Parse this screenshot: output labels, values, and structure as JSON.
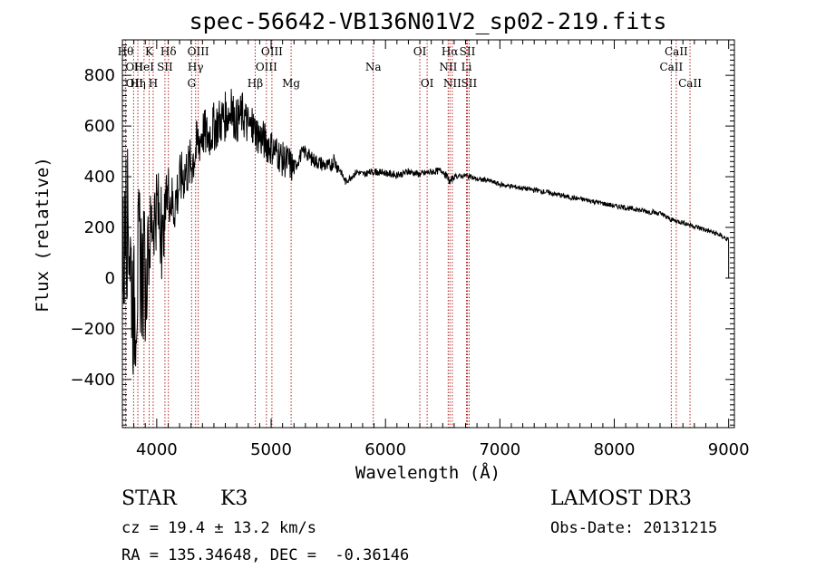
{
  "chart_data": {
    "type": "line",
    "title": "spec-56642-VB136N01V2_sp02-219.fits",
    "xlabel": "Wavelength (Å)",
    "ylabel": "Flux (relative)",
    "xlim": [
      3700,
      9050
    ],
    "ylim": [
      -590,
      940
    ],
    "xticks": [
      4000,
      5000,
      6000,
      7000,
      8000,
      9000
    ],
    "yticks": [
      -400,
      -200,
      0,
      200,
      400,
      600,
      800
    ],
    "tick_labels": {
      "x": [
        "4000",
        "5000",
        "6000",
        "7000",
        "8000",
        "9000"
      ],
      "y": [
        "−400",
        "−200",
        "0",
        "200",
        "400",
        "600",
        "800"
      ]
    },
    "spectrum": {
      "name": "flux",
      "x": [
        3700,
        3750,
        3800,
        3850,
        3900,
        3950,
        4000,
        4050,
        4100,
        4150,
        4200,
        4250,
        4300,
        4350,
        4400,
        4450,
        4500,
        4550,
        4600,
        4650,
        4700,
        4750,
        4800,
        4850,
        4900,
        4950,
        5000,
        5050,
        5100,
        5150,
        5200,
        5250,
        5300,
        5350,
        5400,
        5450,
        5500,
        5550,
        5600,
        5650,
        5700,
        5750,
        5800,
        5900,
        6000,
        6100,
        6200,
        6300,
        6400,
        6500,
        6563,
        6600,
        6700,
        6800,
        6900,
        7000,
        7200,
        7400,
        7600,
        7800,
        8000,
        8200,
        8400,
        8500,
        8600,
        8700,
        8800,
        8900,
        9000
      ],
      "y": [
        50,
        250,
        -150,
        100,
        -50,
        200,
        300,
        150,
        350,
        280,
        380,
        420,
        450,
        520,
        580,
        560,
        600,
        620,
        640,
        660,
        620,
        650,
        600,
        590,
        560,
        540,
        520,
        500,
        470,
        460,
        430,
        480,
        500,
        470,
        460,
        450,
        440,
        460,
        430,
        380,
        400,
        420,
        410,
        420,
        415,
        405,
        420,
        410,
        420,
        425,
        380,
        400,
        405,
        390,
        385,
        370,
        355,
        340,
        320,
        305,
        285,
        270,
        255,
        230,
        220,
        205,
        190,
        175,
        150
      ]
    },
    "noise": [
      300,
      180,
      120,
      110,
      100,
      90,
      80,
      70,
      30,
      14,
      10
    ],
    "noise_breaks": [
      3900,
      4050,
      4200,
      4400,
      4600,
      4800,
      5000,
      5200,
      5600,
      6600,
      9000
    ],
    "lines": [
      {
        "label": "Hθ",
        "wl": 3798,
        "row": 0,
        "anchor": "end"
      },
      {
        "label": "OII",
        "wl": 3727,
        "row": 1,
        "anchor": "start"
      },
      {
        "label": "OII",
        "wl": 3729,
        "row": 2,
        "anchor": "start"
      },
      {
        "label": "Hη",
        "wl": 3835,
        "row": 2,
        "anchor": "middle"
      },
      {
        "label": "K",
        "wl": 3934,
        "row": 0,
        "anchor": "middle"
      },
      {
        "label": "HeI",
        "wl": 3889,
        "row": 1,
        "anchor": "middle"
      },
      {
        "label": "H",
        "wl": 3969,
        "row": 2,
        "anchor": "middle"
      },
      {
        "label": "Hδ",
        "wl": 4102,
        "row": 0,
        "anchor": "middle"
      },
      {
        "label": "SII",
        "wl": 4072,
        "row": 1,
        "anchor": "middle"
      },
      {
        "label": "OIII",
        "wl": 4363,
        "row": 0,
        "anchor": "middle"
      },
      {
        "label": "Hγ",
        "wl": 4340,
        "row": 1,
        "anchor": "middle"
      },
      {
        "label": "G",
        "wl": 4305,
        "row": 2,
        "anchor": "middle"
      },
      {
        "label": "Hβ",
        "wl": 4861,
        "row": 2,
        "anchor": "middle"
      },
      {
        "label": "OIII",
        "wl": 5007,
        "row": 0,
        "anchor": "middle"
      },
      {
        "label": "OIII",
        "wl": 4959,
        "row": 1,
        "anchor": "middle"
      },
      {
        "label": "Mg",
        "wl": 5175,
        "row": 2,
        "anchor": "middle"
      },
      {
        "label": "Na",
        "wl": 5893,
        "row": 1,
        "anchor": "middle"
      },
      {
        "label": "OI",
        "wl": 6300,
        "row": 0,
        "anchor": "middle"
      },
      {
        "label": "OI",
        "wl": 6364,
        "row": 2,
        "anchor": "middle"
      },
      {
        "label": "Hα",
        "wl": 6563,
        "row": 0,
        "anchor": "middle"
      },
      {
        "label": "SII",
        "wl": 6716,
        "row": 0,
        "anchor": "middle"
      },
      {
        "label": "NII",
        "wl": 6548,
        "row": 1,
        "anchor": "middle"
      },
      {
        "label": "Li",
        "wl": 6708,
        "row": 1,
        "anchor": "middle"
      },
      {
        "label": "NII",
        "wl": 6584,
        "row": 2,
        "anchor": "middle"
      },
      {
        "label": "SII",
        "wl": 6731,
        "row": 2,
        "anchor": "middle"
      },
      {
        "label": "CaII",
        "wl": 8542,
        "row": 0,
        "anchor": "middle"
      },
      {
        "label": "CaII",
        "wl": 8498,
        "row": 1,
        "anchor": "middle"
      },
      {
        "label": "CaII",
        "wl": 8662,
        "row": 2,
        "anchor": "middle"
      }
    ],
    "colors": {
      "line": "#000000",
      "marker": "#b22222",
      "axes": "#000000"
    }
  },
  "info": {
    "class": "STAR",
    "subclass": "K3",
    "survey": "LAMOST DR3",
    "cz": "cz = 19.4 ± 13.2 km/s",
    "obs_date": "Obs-Date: 20131215",
    "coords": "RA = 135.34648, DEC =  -0.36146"
  }
}
